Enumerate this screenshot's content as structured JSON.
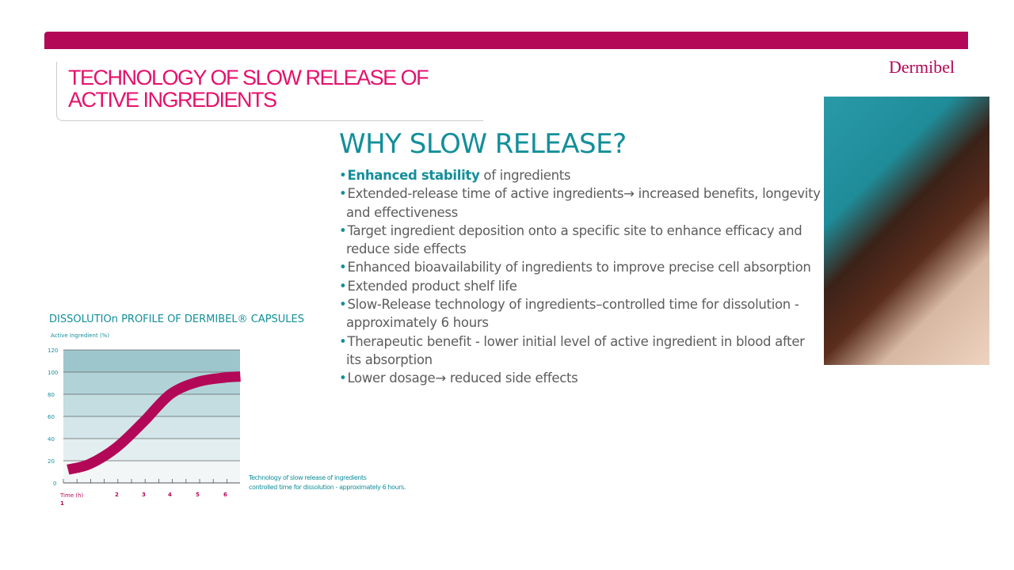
{
  "header": {
    "title": "TECHNOLOGY OF SLOW RELEASE OF ACTIVE INGREDIENTS",
    "logo": "Dermibel"
  },
  "main": {
    "heading": "WHY SLOW RELEASE?",
    "bullets": [
      {
        "highlight": "Enhanced stability",
        "text": " of ingredients"
      },
      {
        "text": "Extended-release time of active ingredients→ increased benefits, longevity and effectiveness"
      },
      {
        "text": "Target ingredient deposition onto a specific site to enhance efficacy and reduce side effects"
      },
      {
        "text": "Enhanced bioavailability of ingredients to improve precise cell absorption"
      },
      {
        "text": "Extended product shelf life"
      },
      {
        "text": "Slow-Release technology of ingredients–controlled time for dissolution - approximately 6 hours"
      },
      {
        "text": "Therapeutic benefit - lower initial level of active ingredient in blood after its absorption"
      },
      {
        "text": "Lower dosage→ reduced side effects"
      }
    ]
  },
  "chart_data": {
    "type": "line",
    "title": "DISSOLUTIOn PROFILE OF DERMIBEL® CAPSULES",
    "ylabel": "Active Ingredient (%)",
    "xlabel": "Time (h)",
    "ylim": [
      0,
      120
    ],
    "xlim": [
      0,
      6.6
    ],
    "yticks": [
      "0",
      "20",
      "40",
      "60",
      "80",
      "100",
      "120"
    ],
    "xticks": [
      "1",
      "2",
      "3",
      "4",
      "5",
      "6"
    ],
    "series": [
      {
        "name": "Dissolution",
        "x": [
          0.2,
          1,
          2,
          3,
          4,
          5,
          6,
          6.6
        ],
        "y": [
          12,
          17,
          32,
          55,
          80,
          91,
          95,
          96
        ],
        "color": "#b30857"
      }
    ],
    "caption": [
      "Technology of slow release of ingredients",
      "controlled time for dissolution - approximately 6 hours."
    ],
    "grid": true
  }
}
